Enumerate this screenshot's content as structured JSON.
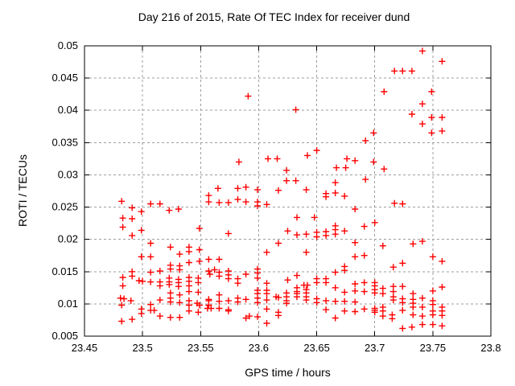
{
  "chart_data": {
    "type": "scatter",
    "title": "Day 216 of 2015, Rate Of TEC Index for receiver dund",
    "xlabel": "GPS time / hours",
    "ylabel": "ROTI / TECUs",
    "xlim": [
      23.45,
      23.8
    ],
    "ylim": [
      0.005,
      0.05
    ],
    "xtick_values": [
      23.45,
      23.5,
      23.55,
      23.6,
      23.65,
      23.7,
      23.75,
      23.8
    ],
    "xtick_labels": [
      "23.45",
      "23.5",
      "23.55",
      "23.6",
      "23.65",
      "23.7",
      "23.75",
      "23.8"
    ],
    "ytick_values": [
      0.005,
      0.01,
      0.015,
      0.02,
      0.025,
      0.03,
      0.035,
      0.04,
      0.045,
      0.05
    ],
    "ytick_labels": [
      "0.005",
      "0.01",
      "0.015",
      "0.02",
      "0.025",
      "0.03",
      "0.035",
      "0.04",
      "0.045",
      "0.05"
    ],
    "grid": true,
    "legend": "none",
    "marker": "plus",
    "marker_color": "#ff0000",
    "grid_color": "#9e9e9e",
    "border_color": "#000000",
    "background_color": "#ffffff",
    "points": [
      [
        23.591,
        0.0422
      ],
      [
        23.583,
        0.032
      ],
      [
        23.608,
        0.0325
      ],
      [
        23.616,
        0.0325
      ],
      [
        23.624,
        0.0307
      ],
      [
        23.624,
        0.0291
      ],
      [
        23.741,
        0.0492
      ],
      [
        23.758,
        0.0476
      ],
      [
        23.717,
        0.0461
      ],
      [
        23.724,
        0.0461
      ],
      [
        23.732,
        0.0461
      ],
      [
        23.708,
        0.0429
      ],
      [
        23.749,
        0.0429
      ],
      [
        23.741,
        0.041
      ],
      [
        23.632,
        0.0401
      ],
      [
        23.732,
        0.0394
      ],
      [
        23.749,
        0.0389
      ],
      [
        23.758,
        0.0389
      ],
      [
        23.741,
        0.0379
      ],
      [
        23.749,
        0.0365
      ],
      [
        23.758,
        0.0368
      ],
      [
        23.699,
        0.0365
      ],
      [
        23.692,
        0.0353
      ],
      [
        23.65,
        0.0338
      ],
      [
        23.642,
        0.033
      ],
      [
        23.676,
        0.0325
      ],
      [
        23.683,
        0.0322
      ],
      [
        23.667,
        0.0311
      ],
      [
        23.675,
        0.0311
      ],
      [
        23.699,
        0.032
      ],
      [
        23.708,
        0.0309
      ],
      [
        23.632,
        0.0291
      ],
      [
        23.666,
        0.0288
      ],
      [
        23.692,
        0.0293
      ],
      [
        23.482,
        0.0259
      ],
      [
        23.491,
        0.0249
      ],
      [
        23.499,
        0.0243
      ],
      [
        23.507,
        0.0255
      ],
      [
        23.515,
        0.0255
      ],
      [
        23.483,
        0.0233
      ],
      [
        23.491,
        0.0232
      ],
      [
        23.483,
        0.0219
      ],
      [
        23.499,
        0.0214
      ],
      [
        23.491,
        0.0206
      ],
      [
        23.507,
        0.0194
      ],
      [
        23.499,
        0.0173
      ],
      [
        23.507,
        0.0173
      ],
      [
        23.491,
        0.015
      ],
      [
        23.491,
        0.0143
      ],
      [
        23.483,
        0.0141
      ],
      [
        23.497,
        0.0136
      ],
      [
        23.5,
        0.0135
      ],
      [
        23.483,
        0.0128
      ],
      [
        23.507,
        0.0149
      ],
      [
        23.515,
        0.0151
      ],
      [
        23.507,
        0.0134
      ],
      [
        23.515,
        0.0134
      ],
      [
        23.515,
        0.0128
      ],
      [
        23.515,
        0.0106
      ],
      [
        23.507,
        0.0099
      ],
      [
        23.499,
        0.0092
      ],
      [
        23.507,
        0.009
      ],
      [
        23.51,
        0.009
      ],
      [
        23.515,
        0.0081
      ],
      [
        23.481,
        0.0109
      ],
      [
        23.484,
        0.0108
      ],
      [
        23.49,
        0.0105
      ],
      [
        23.482,
        0.0098
      ],
      [
        23.499,
        0.0085
      ],
      [
        23.482,
        0.0073
      ],
      [
        23.491,
        0.0076
      ],
      [
        23.565,
        0.0279
      ],
      [
        23.582,
        0.0279
      ],
      [
        23.589,
        0.0281
      ],
      [
        23.557,
        0.0268
      ],
      [
        23.582,
        0.0262
      ],
      [
        23.557,
        0.0258
      ],
      [
        23.566,
        0.0257
      ],
      [
        23.574,
        0.0257
      ],
      [
        23.589,
        0.0258
      ],
      [
        23.523,
        0.0245
      ],
      [
        23.531,
        0.0247
      ],
      [
        23.549,
        0.0217
      ],
      [
        23.574,
        0.0209
      ],
      [
        23.524,
        0.0188
      ],
      [
        23.532,
        0.0177
      ],
      [
        23.54,
        0.0188
      ],
      [
        23.54,
        0.0181
      ],
      [
        23.549,
        0.0184
      ],
      [
        23.54,
        0.0164
      ],
      [
        23.549,
        0.0166
      ],
      [
        23.557,
        0.0169
      ],
      [
        23.566,
        0.0169
      ],
      [
        23.524,
        0.016
      ],
      [
        23.524,
        0.0154
      ],
      [
        23.532,
        0.0159
      ],
      [
        23.532,
        0.0153
      ],
      [
        23.557,
        0.0151
      ],
      [
        23.558,
        0.0146
      ],
      [
        23.562,
        0.0153
      ],
      [
        23.566,
        0.0149
      ],
      [
        23.566,
        0.0143
      ],
      [
        23.574,
        0.0151
      ],
      [
        23.574,
        0.0145
      ],
      [
        23.589,
        0.0146
      ],
      [
        23.523,
        0.014
      ],
      [
        23.523,
        0.0134
      ],
      [
        23.523,
        0.013
      ],
      [
        23.531,
        0.0138
      ],
      [
        23.531,
        0.0133
      ],
      [
        23.531,
        0.0127
      ],
      [
        23.54,
        0.0141
      ],
      [
        23.54,
        0.0135
      ],
      [
        23.54,
        0.0128
      ],
      [
        23.548,
        0.014
      ],
      [
        23.548,
        0.0133
      ],
      [
        23.582,
        0.0139
      ],
      [
        23.582,
        0.0132
      ],
      [
        23.574,
        0.0139
      ],
      [
        23.524,
        0.0117
      ],
      [
        23.532,
        0.0114
      ],
      [
        23.54,
        0.0119
      ],
      [
        23.548,
        0.0118
      ],
      [
        23.524,
        0.0109
      ],
      [
        23.524,
        0.0103
      ],
      [
        23.532,
        0.0102
      ],
      [
        23.54,
        0.0105
      ],
      [
        23.54,
        0.0098
      ],
      [
        23.547,
        0.0101
      ],
      [
        23.549,
        0.0098
      ],
      [
        23.557,
        0.0107
      ],
      [
        23.557,
        0.0105
      ],
      [
        23.557,
        0.0098
      ],
      [
        23.566,
        0.0114
      ],
      [
        23.566,
        0.0104
      ],
      [
        23.574,
        0.0105
      ],
      [
        23.582,
        0.0109
      ],
      [
        23.582,
        0.0103
      ],
      [
        23.589,
        0.0107
      ],
      [
        23.556,
        0.0093
      ],
      [
        23.559,
        0.0093
      ],
      [
        23.566,
        0.0093
      ],
      [
        23.574,
        0.0091
      ],
      [
        23.574,
        0.0089
      ],
      [
        23.54,
        0.0089
      ],
      [
        23.548,
        0.0087
      ],
      [
        23.524,
        0.0079
      ],
      [
        23.532,
        0.0079
      ],
      [
        23.589,
        0.0078
      ],
      [
        23.599,
        0.0277
      ],
      [
        23.617,
        0.0276
      ],
      [
        23.641,
        0.0277
      ],
      [
        23.658,
        0.0271
      ],
      [
        23.658,
        0.0266
      ],
      [
        23.599,
        0.0258
      ],
      [
        23.599,
        0.0252
      ],
      [
        23.607,
        0.0254
      ],
      [
        23.633,
        0.0234
      ],
      [
        23.648,
        0.0234
      ],
      [
        23.625,
        0.0213
      ],
      [
        23.633,
        0.0207
      ],
      [
        23.641,
        0.0208
      ],
      [
        23.65,
        0.0211
      ],
      [
        23.65,
        0.0204
      ],
      [
        23.658,
        0.0212
      ],
      [
        23.658,
        0.0206
      ],
      [
        23.617,
        0.0194
      ],
      [
        23.607,
        0.018
      ],
      [
        23.641,
        0.018
      ],
      [
        23.599,
        0.0154
      ],
      [
        23.599,
        0.0148
      ],
      [
        23.599,
        0.014
      ],
      [
        23.607,
        0.0132
      ],
      [
        23.625,
        0.0137
      ],
      [
        23.633,
        0.0144
      ],
      [
        23.639,
        0.0129
      ],
      [
        23.642,
        0.0129
      ],
      [
        23.65,
        0.0139
      ],
      [
        23.65,
        0.0133
      ],
      [
        23.658,
        0.0139
      ],
      [
        23.658,
        0.0133
      ],
      [
        23.599,
        0.0121
      ],
      [
        23.599,
        0.0116
      ],
      [
        23.599,
        0.0109
      ],
      [
        23.599,
        0.0102
      ],
      [
        23.607,
        0.0121
      ],
      [
        23.607,
        0.0116
      ],
      [
        23.607,
        0.0106
      ],
      [
        23.615,
        0.0111
      ],
      [
        23.617,
        0.011
      ],
      [
        23.624,
        0.0117
      ],
      [
        23.624,
        0.0111
      ],
      [
        23.624,
        0.0105
      ],
      [
        23.624,
        0.0101
      ],
      [
        23.633,
        0.0125
      ],
      [
        23.633,
        0.0119
      ],
      [
        23.633,
        0.0116
      ],
      [
        23.633,
        0.0111
      ],
      [
        23.641,
        0.0122
      ],
      [
        23.641,
        0.0117
      ],
      [
        23.641,
        0.0111
      ],
      [
        23.641,
        0.0106
      ],
      [
        23.65,
        0.0108
      ],
      [
        23.65,
        0.0102
      ],
      [
        23.658,
        0.0105
      ],
      [
        23.607,
        0.0092
      ],
      [
        23.617,
        0.0087
      ],
      [
        23.617,
        0.0082
      ],
      [
        23.599,
        0.008
      ],
      [
        23.592,
        0.0081
      ],
      [
        23.607,
        0.007
      ],
      [
        23.658,
        0.0091
      ],
      [
        23.666,
        0.0272
      ],
      [
        23.674,
        0.0267
      ],
      [
        23.683,
        0.0247
      ],
      [
        23.717,
        0.0256
      ],
      [
        23.724,
        0.0255
      ],
      [
        23.7,
        0.0226
      ],
      [
        23.691,
        0.022
      ],
      [
        23.666,
        0.0221
      ],
      [
        23.666,
        0.0215
      ],
      [
        23.666,
        0.0208
      ],
      [
        23.674,
        0.0213
      ],
      [
        23.683,
        0.0195
      ],
      [
        23.707,
        0.019
      ],
      [
        23.683,
        0.0173
      ],
      [
        23.691,
        0.0175
      ],
      [
        23.674,
        0.0158
      ],
      [
        23.674,
        0.0152
      ],
      [
        23.666,
        0.0149
      ],
      [
        23.716,
        0.0157
      ],
      [
        23.724,
        0.0163
      ],
      [
        23.683,
        0.0131
      ],
      [
        23.691,
        0.0133
      ],
      [
        23.7,
        0.0133
      ],
      [
        23.7,
        0.0128
      ],
      [
        23.7,
        0.0122
      ],
      [
        23.7,
        0.0117
      ],
      [
        23.666,
        0.0125
      ],
      [
        23.666,
        0.0104
      ],
      [
        23.674,
        0.0118
      ],
      [
        23.674,
        0.0104
      ],
      [
        23.683,
        0.012
      ],
      [
        23.683,
        0.0103
      ],
      [
        23.691,
        0.0119
      ],
      [
        23.707,
        0.0124
      ],
      [
        23.707,
        0.0116
      ],
      [
        23.716,
        0.0127
      ],
      [
        23.716,
        0.0119
      ],
      [
        23.716,
        0.0111
      ],
      [
        23.716,
        0.0106
      ],
      [
        23.724,
        0.0127
      ],
      [
        23.724,
        0.0108
      ],
      [
        23.724,
        0.0102
      ],
      [
        23.674,
        0.0089
      ],
      [
        23.683,
        0.0088
      ],
      [
        23.691,
        0.0092
      ],
      [
        23.7,
        0.0093
      ],
      [
        23.7,
        0.009
      ],
      [
        23.7,
        0.0087
      ],
      [
        23.707,
        0.0095
      ],
      [
        23.707,
        0.0089
      ],
      [
        23.707,
        0.0081
      ],
      [
        23.715,
        0.0083
      ],
      [
        23.715,
        0.0077
      ],
      [
        23.724,
        0.009
      ],
      [
        23.666,
        0.0078
      ],
      [
        23.724,
        0.0062
      ],
      [
        23.733,
        0.0193
      ],
      [
        23.741,
        0.0197
      ],
      [
        23.75,
        0.0173
      ],
      [
        23.758,
        0.0166
      ],
      [
        23.758,
        0.0126
      ],
      [
        23.75,
        0.012
      ],
      [
        23.733,
        0.0116
      ],
      [
        23.733,
        0.0107
      ],
      [
        23.733,
        0.0101
      ],
      [
        23.741,
        0.0109
      ],
      [
        23.741,
        0.0095
      ],
      [
        23.733,
        0.0095
      ],
      [
        23.733,
        0.0083
      ],
      [
        23.741,
        0.0081
      ],
      [
        23.75,
        0.0105
      ],
      [
        23.75,
        0.0099
      ],
      [
        23.75,
        0.0089
      ],
      [
        23.75,
        0.0083
      ],
      [
        23.758,
        0.0095
      ],
      [
        23.758,
        0.0089
      ],
      [
        23.758,
        0.0082
      ],
      [
        23.75,
        0.0068
      ],
      [
        23.758,
        0.0066
      ],
      [
        23.741,
        0.0068
      ],
      [
        23.732,
        0.0064
      ]
    ]
  }
}
